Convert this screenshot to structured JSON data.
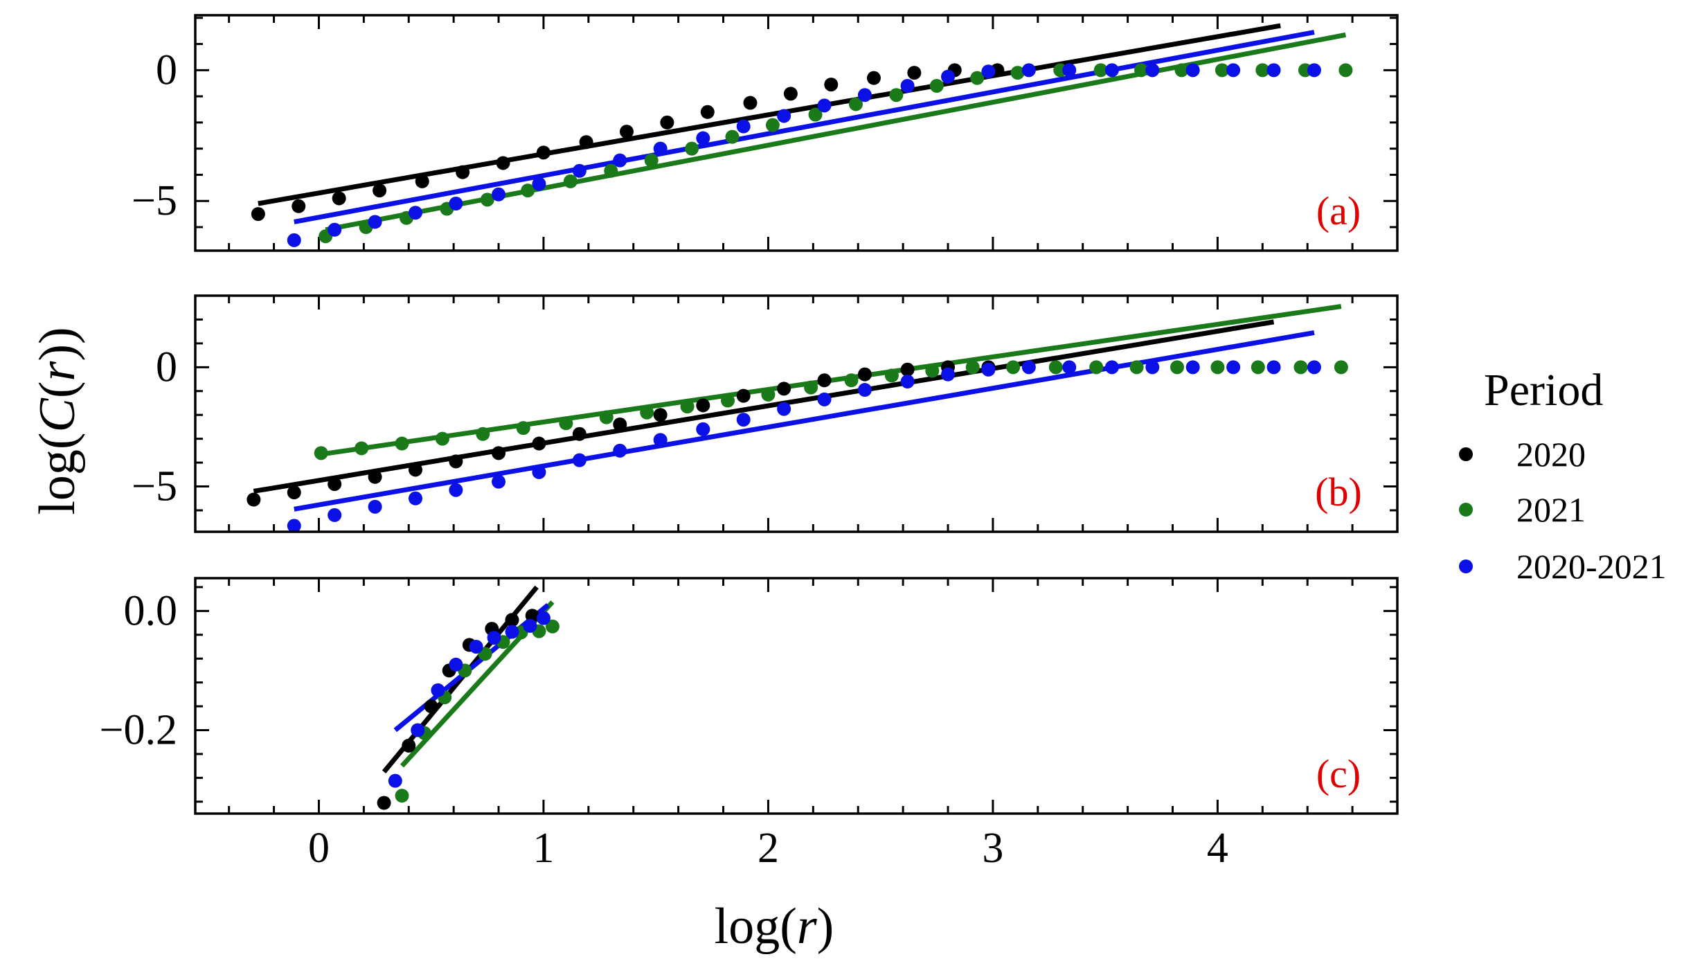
{
  "figure": {
    "ylabel": "log(C(r))",
    "xlabel_prefix": "log(",
    "xlabel_var": "r",
    "xlabel_suffix": ")",
    "ylabel_prefix": "log(",
    "ylabel_func": "C",
    "ylabel_open": "(",
    "ylabel_var": "r",
    "ylabel_suffix": "))"
  },
  "legend": {
    "title": "Period",
    "entries": [
      {
        "label": "2020",
        "color": "#000000"
      },
      {
        "label": "2021",
        "color": "#1a7a1a"
      },
      {
        "label": "2020-2021",
        "color": "#0a10e6"
      }
    ]
  },
  "chart_data": [
    {
      "type": "scatter",
      "panel_label": "(a)",
      "panel_label_color": "#e00000",
      "xlim": [
        -0.55,
        4.8
      ],
      "ylim": [
        -6.9,
        2.1
      ],
      "xticks": [
        0,
        1,
        2,
        3,
        4
      ],
      "xtick_labels": [
        "",
        "",
        "",
        "",
        ""
      ],
      "yticks": [
        -5,
        0
      ],
      "ytick_labels": [
        "−5",
        "0"
      ],
      "series": [
        {
          "name": "2020",
          "color": "#000000",
          "points": [
            [
              -0.27,
              -5.5
            ],
            [
              -0.09,
              -5.2
            ],
            [
              0.09,
              -4.9
            ],
            [
              0.27,
              -4.6
            ],
            [
              0.46,
              -4.25
            ],
            [
              0.64,
              -3.9
            ],
            [
              0.82,
              -3.55
            ],
            [
              1.0,
              -3.15
            ],
            [
              1.19,
              -2.75
            ],
            [
              1.37,
              -2.35
            ],
            [
              1.55,
              -2.0
            ],
            [
              1.73,
              -1.6
            ],
            [
              1.92,
              -1.25
            ],
            [
              2.1,
              -0.9
            ],
            [
              2.28,
              -0.55
            ],
            [
              2.47,
              -0.3
            ],
            [
              2.65,
              -0.1
            ],
            [
              2.83,
              0.0
            ],
            [
              3.02,
              0.0
            ]
          ],
          "fit": [
            [
              -0.27,
              -5.1
            ],
            [
              4.28,
              1.7
            ]
          ]
        },
        {
          "name": "2021",
          "color": "#1a7a1a",
          "points": [
            [
              0.03,
              -6.35
            ],
            [
              0.21,
              -6.0
            ],
            [
              0.39,
              -5.65
            ],
            [
              0.57,
              -5.3
            ],
            [
              0.75,
              -4.95
            ],
            [
              0.93,
              -4.6
            ],
            [
              1.12,
              -4.25
            ],
            [
              1.3,
              -3.85
            ],
            [
              1.48,
              -3.45
            ],
            [
              1.66,
              -3.0
            ],
            [
              1.84,
              -2.55
            ],
            [
              2.02,
              -2.1
            ],
            [
              2.21,
              -1.7
            ],
            [
              2.39,
              -1.3
            ],
            [
              2.57,
              -0.95
            ],
            [
              2.75,
              -0.6
            ],
            [
              2.93,
              -0.3
            ],
            [
              3.11,
              -0.1
            ],
            [
              3.3,
              0.0
            ],
            [
              3.48,
              0.0
            ],
            [
              3.66,
              0.0
            ],
            [
              3.84,
              0.0
            ],
            [
              4.02,
              0.0
            ],
            [
              4.2,
              0.0
            ],
            [
              4.39,
              0.0
            ],
            [
              4.57,
              0.0
            ]
          ],
          "fit": [
            [
              0.03,
              -6.1
            ],
            [
              4.57,
              1.35
            ]
          ]
        },
        {
          "name": "2020-2021",
          "color": "#0a10e6",
          "points": [
            [
              -0.11,
              -6.5
            ],
            [
              0.07,
              -6.1
            ],
            [
              0.25,
              -5.8
            ],
            [
              0.43,
              -5.45
            ],
            [
              0.61,
              -5.1
            ],
            [
              0.8,
              -4.75
            ],
            [
              0.98,
              -4.35
            ],
            [
              1.16,
              -3.85
            ],
            [
              1.34,
              -3.45
            ],
            [
              1.52,
              -3.0
            ],
            [
              1.71,
              -2.6
            ],
            [
              1.89,
              -2.15
            ],
            [
              2.07,
              -1.75
            ],
            [
              2.25,
              -1.35
            ],
            [
              2.43,
              -0.95
            ],
            [
              2.62,
              -0.6
            ],
            [
              2.8,
              -0.25
            ],
            [
              2.98,
              -0.05
            ],
            [
              3.16,
              0.0
            ],
            [
              3.34,
              0.0
            ],
            [
              3.53,
              0.0
            ],
            [
              3.71,
              0.0
            ],
            [
              3.89,
              0.0
            ],
            [
              4.07,
              0.0
            ],
            [
              4.25,
              0.0
            ],
            [
              4.43,
              0.0
            ]
          ],
          "fit": [
            [
              -0.11,
              -5.8
            ],
            [
              4.43,
              1.45
            ]
          ]
        }
      ]
    },
    {
      "type": "scatter",
      "panel_label": "(b)",
      "panel_label_color": "#e00000",
      "xlim": [
        -0.55,
        4.8
      ],
      "ylim": [
        -6.9,
        3.0
      ],
      "xticks": [
        0,
        1,
        2,
        3,
        4
      ],
      "xtick_labels": [
        "",
        "",
        "",
        "",
        ""
      ],
      "yticks": [
        -5,
        0
      ],
      "ytick_labels": [
        "−5",
        "0"
      ],
      "series": [
        {
          "name": "2020",
          "color": "#000000",
          "points": [
            [
              -0.29,
              -5.55
            ],
            [
              -0.11,
              -5.25
            ],
            [
              0.07,
              -4.9
            ],
            [
              0.25,
              -4.6
            ],
            [
              0.43,
              -4.3
            ],
            [
              0.61,
              -3.95
            ],
            [
              0.8,
              -3.6
            ],
            [
              0.98,
              -3.2
            ],
            [
              1.16,
              -2.8
            ],
            [
              1.34,
              -2.4
            ],
            [
              1.52,
              -2.0
            ],
            [
              1.71,
              -1.6
            ],
            [
              1.89,
              -1.2
            ],
            [
              2.07,
              -0.9
            ],
            [
              2.25,
              -0.55
            ],
            [
              2.43,
              -0.3
            ],
            [
              2.62,
              -0.1
            ],
            [
              2.8,
              0.0
            ],
            [
              2.98,
              0.0
            ]
          ],
          "fit": [
            [
              -0.29,
              -5.2
            ],
            [
              4.25,
              1.9
            ]
          ]
        },
        {
          "name": "2021",
          "color": "#1a7a1a",
          "points": [
            [
              0.01,
              -3.6
            ],
            [
              0.19,
              -3.4
            ],
            [
              0.37,
              -3.2
            ],
            [
              0.55,
              -3.0
            ],
            [
              0.73,
              -2.8
            ],
            [
              0.91,
              -2.55
            ],
            [
              1.1,
              -2.35
            ],
            [
              1.28,
              -2.1
            ],
            [
              1.46,
              -1.9
            ],
            [
              1.64,
              -1.65
            ],
            [
              1.82,
              -1.4
            ],
            [
              2.0,
              -1.15
            ],
            [
              2.19,
              -0.85
            ],
            [
              2.37,
              -0.55
            ],
            [
              2.55,
              -0.35
            ],
            [
              2.73,
              -0.15
            ],
            [
              2.91,
              0.0
            ],
            [
              3.09,
              0.0
            ],
            [
              3.28,
              0.0
            ],
            [
              3.46,
              0.0
            ],
            [
              3.64,
              0.0
            ],
            [
              3.82,
              0.0
            ],
            [
              4.0,
              0.0
            ],
            [
              4.18,
              0.0
            ],
            [
              4.37,
              0.0
            ],
            [
              4.55,
              0.0
            ]
          ],
          "fit": [
            [
              0.01,
              -3.65
            ],
            [
              4.55,
              2.55
            ]
          ]
        },
        {
          "name": "2020-2021",
          "color": "#0a10e6",
          "points": [
            [
              -0.11,
              -6.65
            ],
            [
              0.07,
              -6.2
            ],
            [
              0.25,
              -5.85
            ],
            [
              0.43,
              -5.5
            ],
            [
              0.61,
              -5.15
            ],
            [
              0.8,
              -4.8
            ],
            [
              0.98,
              -4.4
            ],
            [
              1.16,
              -3.9
            ],
            [
              1.34,
              -3.5
            ],
            [
              1.52,
              -3.05
            ],
            [
              1.71,
              -2.6
            ],
            [
              1.89,
              -2.2
            ],
            [
              2.07,
              -1.75
            ],
            [
              2.25,
              -1.35
            ],
            [
              2.43,
              -0.95
            ],
            [
              2.62,
              -0.6
            ],
            [
              2.8,
              -0.3
            ],
            [
              2.98,
              -0.1
            ],
            [
              3.16,
              0.0
            ],
            [
              3.34,
              0.0
            ],
            [
              3.53,
              0.0
            ],
            [
              3.71,
              0.0
            ],
            [
              3.89,
              0.0
            ],
            [
              4.07,
              0.0
            ],
            [
              4.25,
              0.0
            ],
            [
              4.43,
              0.0
            ]
          ],
          "fit": [
            [
              -0.11,
              -5.95
            ],
            [
              4.43,
              1.45
            ]
          ]
        }
      ]
    },
    {
      "type": "scatter",
      "panel_label": "(c)",
      "panel_label_color": "#e00000",
      "xlim": [
        -0.55,
        4.8
      ],
      "ylim": [
        -0.34,
        0.055
      ],
      "xticks": [
        0,
        1,
        2,
        3,
        4
      ],
      "xtick_labels": [
        "0",
        "1",
        "2",
        "3",
        "4"
      ],
      "yticks": [
        -0.2,
        0.0
      ],
      "ytick_labels": [
        "−0.2",
        "0.0"
      ],
      "series": [
        {
          "name": "2020",
          "color": "#000000",
          "points": [
            [
              0.29,
              -0.322
            ],
            [
              0.4,
              -0.226
            ],
            [
              0.5,
              -0.16
            ],
            [
              0.58,
              -0.1
            ],
            [
              0.67,
              -0.057
            ],
            [
              0.77,
              -0.03
            ],
            [
              0.86,
              -0.015
            ],
            [
              0.95,
              -0.008
            ]
          ],
          "fit": [
            [
              0.29,
              -0.27
            ],
            [
              0.97,
              0.04
            ]
          ]
        },
        {
          "name": "2021",
          "color": "#1a7a1a",
          "points": [
            [
              0.37,
              -0.31
            ],
            [
              0.47,
              -0.205
            ],
            [
              0.56,
              -0.145
            ],
            [
              0.65,
              -0.1
            ],
            [
              0.74,
              -0.072
            ],
            [
              0.82,
              -0.052
            ],
            [
              0.9,
              -0.036
            ],
            [
              0.98,
              -0.034
            ],
            [
              1.04,
              -0.026
            ]
          ],
          "fit": [
            [
              0.37,
              -0.26
            ],
            [
              1.04,
              0.015
            ]
          ]
        },
        {
          "name": "2020-2021",
          "color": "#0a10e6",
          "points": [
            [
              0.34,
              -0.285
            ],
            [
              0.44,
              -0.2
            ],
            [
              0.53,
              -0.133
            ],
            [
              0.61,
              -0.09
            ],
            [
              0.7,
              -0.06
            ],
            [
              0.78,
              -0.045
            ],
            [
              0.86,
              -0.035
            ],
            [
              0.94,
              -0.025
            ],
            [
              1.0,
              -0.012
            ]
          ],
          "fit": [
            [
              0.34,
              -0.2
            ],
            [
              1.02,
              0.01
            ]
          ]
        }
      ]
    }
  ]
}
